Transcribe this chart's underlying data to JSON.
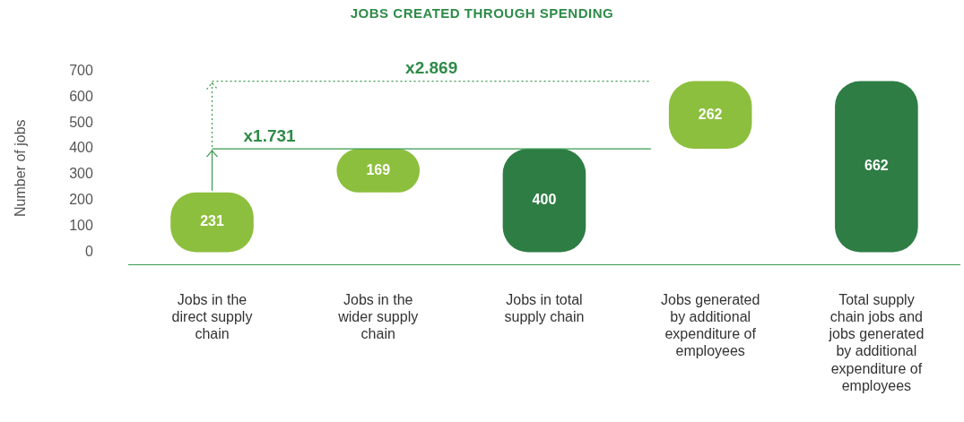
{
  "chart_data": {
    "type": "bar",
    "title": "JOBS CREATED THROUGH SPENDING",
    "ylabel": "Number of jobs",
    "categories": [
      "Jobs in the direct supply chain",
      "Jobs in the wider supply chain",
      "Jobs in total supply chain",
      "Jobs generated by additional expenditure of employees",
      "Total supply chain jobs and jobs generated by additional expenditure of employees"
    ],
    "values": [
      231,
      169,
      400,
      262,
      662
    ],
    "base": [
      0,
      231,
      0,
      400,
      0
    ],
    "colors": [
      "#8dbf3e",
      "#8dbf3e",
      "#2e7d45",
      "#8dbf3e",
      "#2e7d45"
    ],
    "ylim": [
      -50,
      700
    ],
    "yticks": [
      0,
      100,
      200,
      300,
      400,
      500,
      600,
      700
    ],
    "data_labels": true,
    "grid": false,
    "legend": false,
    "ref_lines": [
      {
        "axis": "y",
        "value": 400,
        "label": "x1.731",
        "color": "#3a9a4e",
        "line_style": "solid"
      },
      {
        "axis": "y",
        "value": 662,
        "label": "x2.869",
        "color": "#3a9a4e",
        "line_style": "dotted"
      }
    ]
  }
}
